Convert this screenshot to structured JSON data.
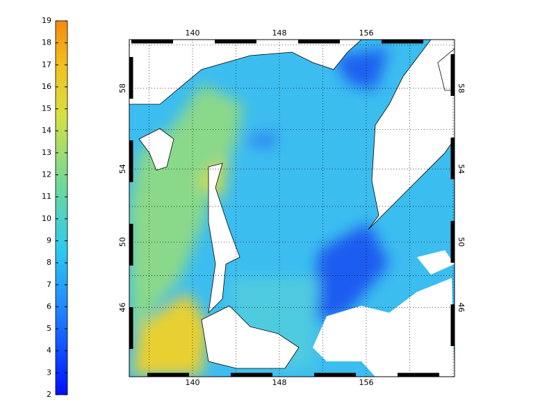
{
  "colorbar": {
    "ticks": [
      2,
      3,
      4,
      5,
      6,
      7,
      8,
      9,
      10,
      11,
      12,
      13,
      14,
      15,
      16,
      17,
      18,
      19
    ]
  },
  "map": {
    "lon_ticks": [
      140,
      148,
      156
    ],
    "lat_ticks": [
      46,
      50,
      54,
      58
    ]
  }
}
